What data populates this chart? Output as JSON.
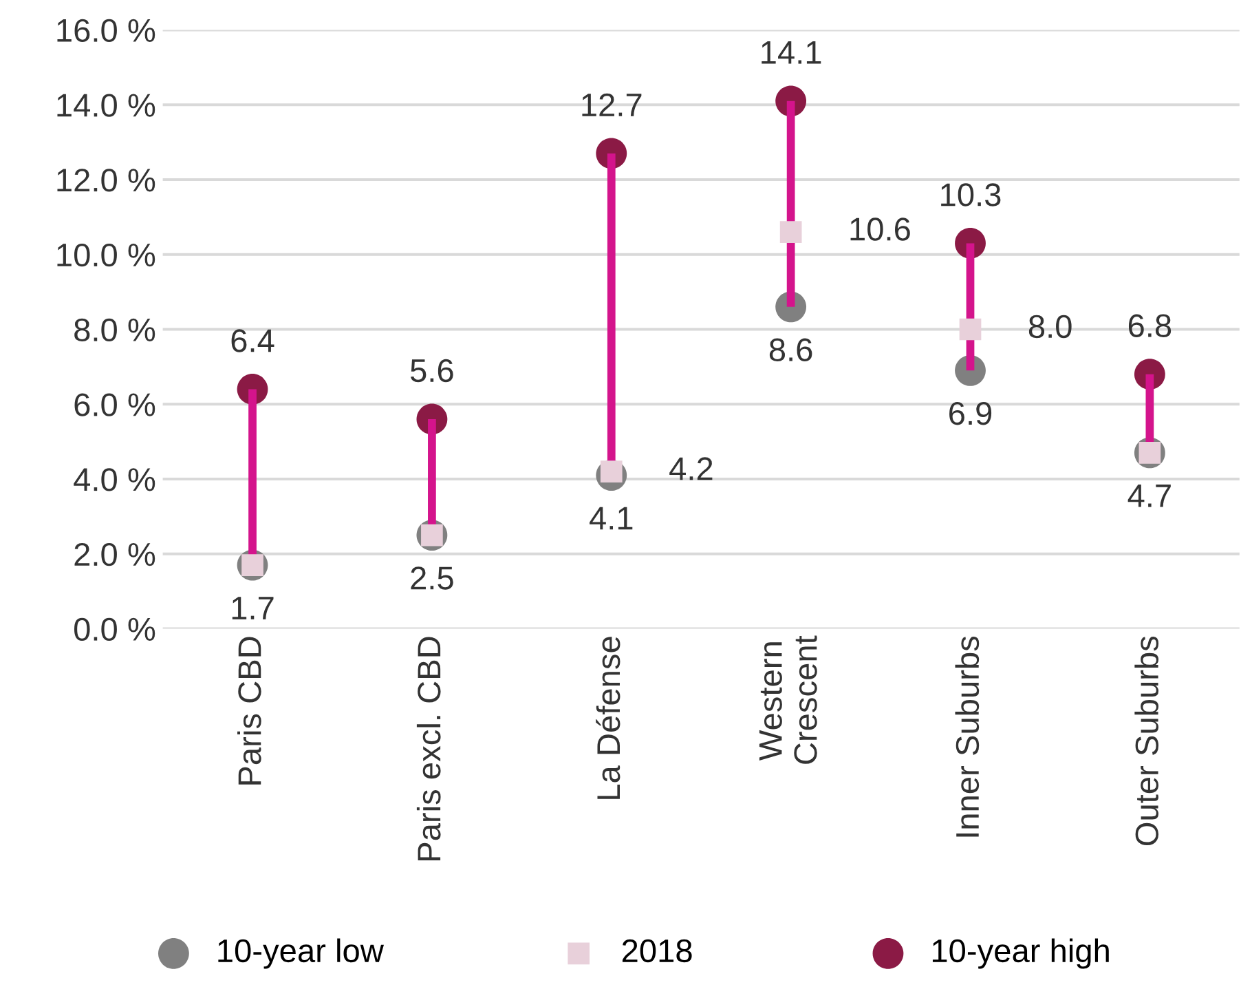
{
  "chart_data": {
    "type": "scatter",
    "categories": [
      "Paris CBD",
      "Paris excl. CBD",
      "La Défense",
      "Western\nCrescent",
      "Inner Suburbs",
      "Outer Suburbs"
    ],
    "series": [
      {
        "type": "bar",
        "color": "#d4148c",
        "base": [
          1.7,
          2.5,
          4.1,
          8.6,
          6.9,
          4.7
        ],
        "values": [
          4.7,
          3.1,
          8.6,
          5.5,
          3.4,
          2.1
        ]
      },
      {
        "name": "10-year low",
        "color": "#808080",
        "marker": "circle",
        "values": [
          1.7,
          2.5,
          4.1,
          8.6,
          6.9,
          4.7
        ],
        "value_labels": [
          null,
          "2.5",
          "4.1",
          "8.6",
          "6.9",
          null
        ]
      },
      {
        "name": "2018",
        "color": "#e8d0da",
        "marker": "square",
        "values": [
          1.7,
          2.5,
          4.2,
          10.6,
          8.0,
          4.7
        ],
        "value_labels": [
          "1.7",
          null,
          "4.2",
          "10.6",
          "8.0",
          "4.7"
        ]
      },
      {
        "name": "10-year high",
        "color": "#8b1a45",
        "marker": "circle",
        "values": [
          6.4,
          5.6,
          12.7,
          14.1,
          10.3,
          6.8
        ],
        "value_labels": [
          "6.4",
          "5.6",
          "12.7",
          "14.1",
          "10.3",
          "6.8"
        ]
      }
    ],
    "ylim": [
      0,
      16
    ],
    "yticks": [
      {
        "value": 0,
        "label": "0.0 %"
      },
      {
        "value": 2,
        "label": "2.0 %"
      },
      {
        "value": 4,
        "label": "4.0 %"
      },
      {
        "value": 6,
        "label": "6.0 %"
      },
      {
        "value": 8,
        "label": "8.0 %"
      },
      {
        "value": 10,
        "label": "10.0 %"
      },
      {
        "value": 12,
        "label": "12.0 %"
      },
      {
        "value": 14,
        "label": "14.0 %"
      },
      {
        "value": 16,
        "label": "16.0 %"
      }
    ],
    "grid": "y",
    "legend": "bottom"
  }
}
